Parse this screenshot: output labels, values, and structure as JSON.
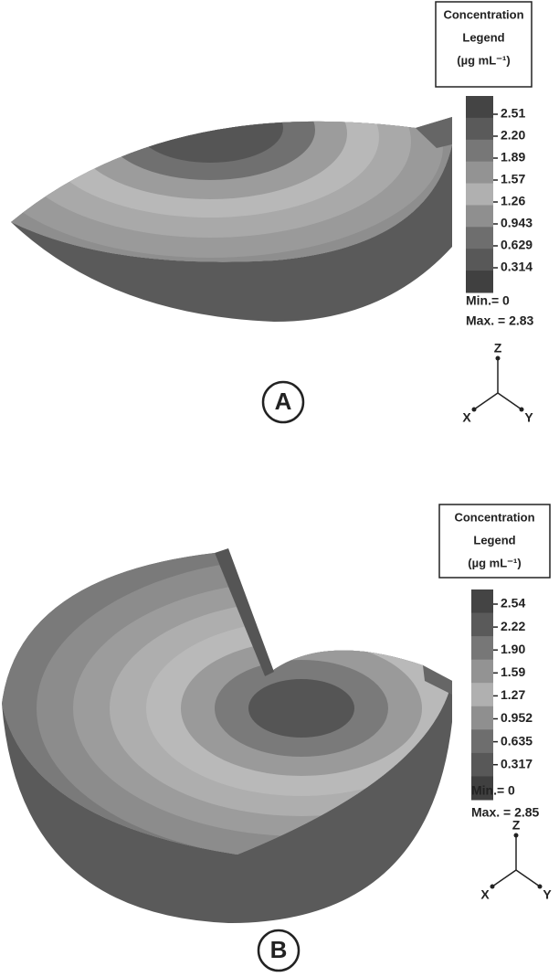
{
  "panels": [
    {
      "label": "A",
      "legend": {
        "title": [
          "Concentration",
          "Legend",
          "(µg mL⁻¹)"
        ],
        "ticks": [
          "2.51",
          "2.20",
          "1.89",
          "1.57",
          "1.26",
          "0.943",
          "0.629",
          "0.314"
        ],
        "min": "Min.= 0",
        "max": "Max. = 2.83"
      },
      "axes": {
        "z": "Z",
        "x": "X",
        "y": "Y"
      }
    },
    {
      "label": "B",
      "legend": {
        "title": [
          "Concentration",
          "Legend",
          "(µg mL⁻¹)"
        ],
        "ticks": [
          "2.54",
          "2.22",
          "1.90",
          "1.59",
          "1.27",
          "0.952",
          "0.635",
          "0.317"
        ],
        "min": "Min.= 0",
        "max": "Max. = 2.85"
      },
      "axes": {
        "z": "Z",
        "x": "X",
        "y": "Y"
      }
    }
  ]
}
